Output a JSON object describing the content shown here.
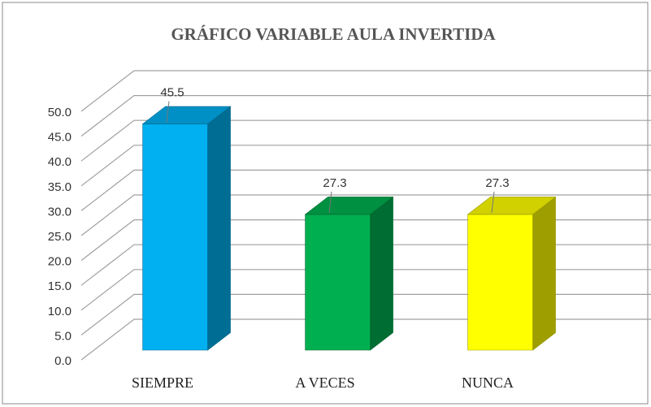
{
  "chart_data": {
    "type": "bar",
    "title": "GRÁFICO VARIABLE AULA INVERTIDA",
    "categories": [
      "SIEMPRE",
      "A VECES",
      "NUNCA"
    ],
    "values": [
      45.5,
      27.3,
      27.3
    ],
    "colors": [
      "#00b0f0",
      "#00b050",
      "#ffff00"
    ],
    "ylim": [
      0,
      50
    ],
    "yticks": [
      {
        "value": 0,
        "label": "0.0"
      },
      {
        "value": 5,
        "label": "5.0"
      },
      {
        "value": 10,
        "label": "10.0"
      },
      {
        "value": 15,
        "label": "15.0"
      },
      {
        "value": 20,
        "label": "20.0"
      },
      {
        "value": 25,
        "label": "25.0"
      },
      {
        "value": 30,
        "label": "30.0"
      },
      {
        "value": 35,
        "label": "35.0"
      },
      {
        "value": 40,
        "label": "40.0"
      },
      {
        "value": 45,
        "label": "45.0"
      },
      {
        "value": 50,
        "label": "50.0"
      }
    ],
    "grid": true
  }
}
